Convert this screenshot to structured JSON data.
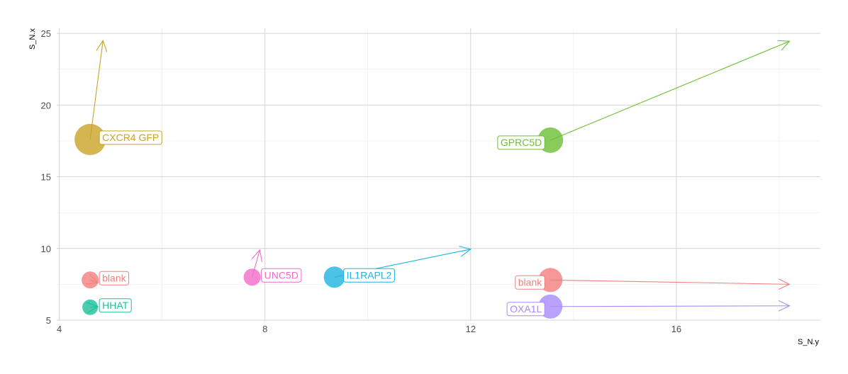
{
  "chart_data": {
    "type": "scatter",
    "title": "",
    "xlabel": "S_N.y",
    "ylabel": "S_N.x",
    "xlim": [
      3.95,
      18.8
    ],
    "ylim": [
      4.95,
      25.35
    ],
    "xticks": [
      "4",
      "8",
      "12",
      "16"
    ],
    "xtick_values": [
      4,
      8,
      12,
      16
    ],
    "yticks": [
      "5",
      "10",
      "15",
      "20",
      "25"
    ],
    "ytick_values": [
      5,
      10,
      15,
      20,
      25
    ],
    "grid": true,
    "legend": "none",
    "points": [
      {
        "label": "CXCR4 GFP",
        "x": 4.6,
        "y": 17.6,
        "size": 22,
        "color": "#C9A227",
        "arrow_to": [
          4.85,
          24.5
        ],
        "label_side": "right"
      },
      {
        "label": "GPRC5D",
        "x": 13.55,
        "y": 17.55,
        "size": 18,
        "color": "#6BBF32",
        "arrow_to": [
          18.2,
          24.45
        ],
        "label_side": "left"
      },
      {
        "label": "UNC5D",
        "x": 7.75,
        "y": 8.0,
        "size": 12,
        "color": "#F26BCB",
        "arrow_to": [
          7.9,
          9.9
        ],
        "label_side": "right"
      },
      {
        "label": "IL1RAPL2",
        "x": 9.35,
        "y": 8.0,
        "size": 15,
        "color": "#1FB3E0",
        "arrow_to": [
          12.0,
          9.95
        ],
        "label_side": "right"
      },
      {
        "label": "blank",
        "x": 4.6,
        "y": 7.8,
        "size": 12,
        "color": "#F27E7E",
        "arrow_to": [
          4.75,
          7.6
        ],
        "label_side": "right"
      },
      {
        "label": "HHAT",
        "x": 4.6,
        "y": 5.9,
        "size": 11,
        "color": "#1DBF9A",
        "arrow_to": [
          4.75,
          5.95
        ],
        "label_side": "right"
      },
      {
        "label": "blank",
        "x": 13.55,
        "y": 7.8,
        "size": 17,
        "color": "#F27E7E",
        "arrow_to": [
          18.2,
          7.5
        ],
        "label_side": "left"
      },
      {
        "label": "OXA1L",
        "x": 13.55,
        "y": 5.95,
        "size": 17,
        "color": "#A78BFA",
        "arrow_to": [
          18.2,
          6.0
        ],
        "label_side": "left"
      }
    ]
  }
}
